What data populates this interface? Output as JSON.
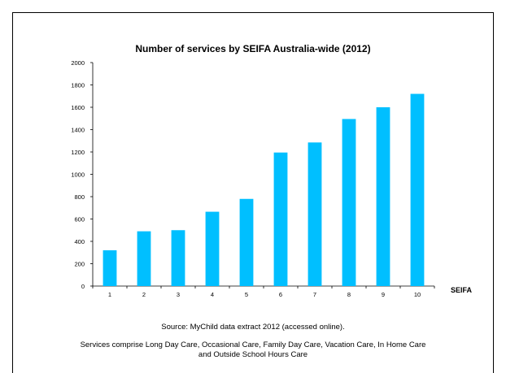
{
  "chart_data": {
    "type": "bar",
    "title": "Number of services by SEIFA Australia-wide (2012)",
    "xlabel": "SEIFA",
    "ylabel": "",
    "categories": [
      "1",
      "2",
      "3",
      "4",
      "5",
      "6",
      "7",
      "8",
      "9",
      "10"
    ],
    "values": [
      320,
      490,
      500,
      665,
      780,
      1195,
      1285,
      1495,
      1600,
      1720
    ],
    "ylim": [
      0,
      2000
    ],
    "yticks": [
      "0",
      "200",
      "400",
      "600",
      "800",
      "1000",
      "1200",
      "1400",
      "1600",
      "1800",
      "2000"
    ],
    "bar_color": "#00BFFF",
    "grid": false,
    "legend": "none"
  },
  "captions": {
    "source": "Source: MyChild data extract 2012 (accessed online).",
    "note": "Services comprise Long Day Care, Occasional Care, Family Day Care, Vacation Care, In Home Care and Outside School Hours Care"
  }
}
